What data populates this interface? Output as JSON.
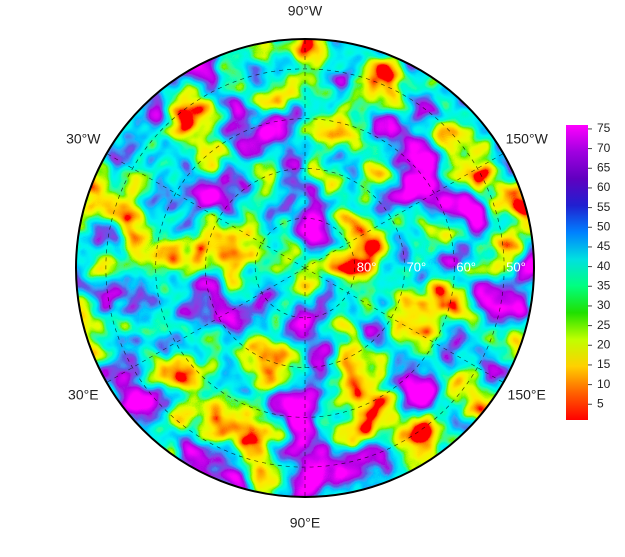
{
  "map": {
    "longitudes": [
      {
        "value": -90,
        "label": "90°W"
      },
      {
        "value": -30,
        "label": "30°W"
      },
      {
        "value": -150,
        "label": "150°W"
      },
      {
        "value": 30,
        "label": "30°E"
      },
      {
        "value": 150,
        "label": "150°E"
      },
      {
        "value": 90,
        "label": "90°E"
      }
    ],
    "latitudes": [
      {
        "value": 80,
        "label": "80°"
      },
      {
        "value": 70,
        "label": "70°"
      },
      {
        "value": 60,
        "label": "60°"
      },
      {
        "value": 50,
        "label": "50°"
      }
    ],
    "boundary_latitude": 44,
    "colorbar": {
      "clim": [
        1,
        76
      ],
      "ticks": [
        5,
        10,
        15,
        20,
        25,
        30,
        35,
        40,
        45,
        50,
        55,
        60,
        65,
        70,
        75
      ],
      "colors": [
        "#ff0000",
        "#ff6000",
        "#ffd000",
        "#c0ff00",
        "#20e000",
        "#00ff80",
        "#00e0e0",
        "#0080ff",
        "#2020d0",
        "#6000c0",
        "#a000e0",
        "#ff00ff"
      ]
    }
  }
}
